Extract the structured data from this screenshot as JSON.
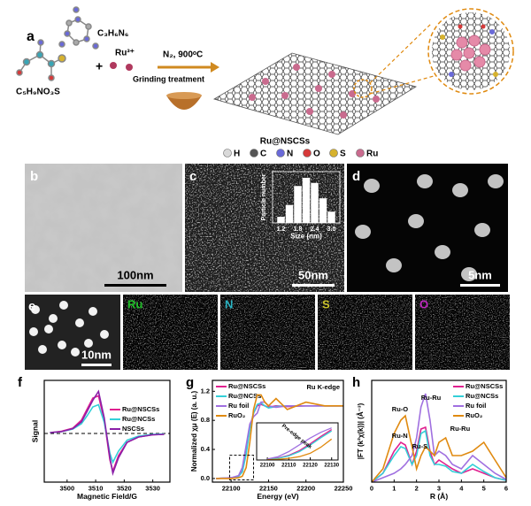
{
  "panel_a": {
    "label": "a",
    "melamine": "C₃H₆N₆",
    "cysteine": "C₅H₉NO₃S",
    "plus": "+",
    "ruthenium_ion": "Ru³⁺",
    "condition": "N₂, 900ᵒC",
    "process": "Grinding treatment",
    "product": "Ru@NSCSs",
    "atoms": [
      {
        "symbol": "H",
        "color": "#d9d9d9"
      },
      {
        "symbol": "C",
        "color": "#555555"
      },
      {
        "symbol": "N",
        "color": "#6a6ad8"
      },
      {
        "symbol": "O",
        "color": "#d63a3a"
      },
      {
        "symbol": "S",
        "color": "#d6b22e"
      },
      {
        "symbol": "Ru",
        "color": "#c96b8e"
      }
    ]
  },
  "panel_b": {
    "label": "b",
    "scale_bar": "100nm"
  },
  "panel_c": {
    "label": "c",
    "scale_bar": "50nm",
    "inset": {
      "type": "histogram",
      "xlabel": "Size (nm)",
      "ylabel": "Particle number",
      "bins": [
        1.05,
        1.35,
        1.65,
        1.95,
        2.25,
        2.55,
        2.85,
        3.15
      ],
      "counts": [
        12,
        35,
        72,
        88,
        78,
        48,
        22
      ],
      "xlim": [
        0.9,
        3.3
      ],
      "ylim": [
        0,
        100
      ],
      "xticks": [
        1.2,
        1.8,
        2.4,
        {
          "value": 3,
          "label": "3.0"
        }
      ],
      "color": "#ffffff"
    }
  },
  "panel_d": {
    "label": "d",
    "scale_bar": "5nm"
  },
  "panel_e": {
    "label": "e",
    "scale_bar": "10nm",
    "maps": [
      {
        "element": "Ru",
        "color": "#22c02a"
      },
      {
        "element": "N",
        "color": "#2bb5c4"
      },
      {
        "element": "S",
        "color": "#c9c22a"
      },
      {
        "element": "O",
        "color": "#c02ac0"
      }
    ]
  },
  "panel_f": {
    "type": "line",
    "label": "f",
    "xlabel": "Magnetic Field/G",
    "ylabel": "Signal",
    "x": [
      3494,
      3498,
      3502,
      3505,
      3507,
      3509,
      3511,
      3513,
      3515,
      3516,
      3518,
      3521,
      3525,
      3530,
      3534
    ],
    "xlim": [
      3492,
      3536
    ],
    "ylim": [
      -1.1,
      1.2
    ],
    "xticks": [
      3500,
      3510,
      3520,
      3530
    ],
    "baseline": 0,
    "series": [
      {
        "name": "Ru@NSCSs",
        "color": "#e0208f",
        "values": [
          0.02,
          0.05,
          0.12,
          0.3,
          0.55,
          0.8,
          0.85,
          0.3,
          -0.6,
          -0.85,
          -0.5,
          -0.2,
          -0.08,
          -0.03,
          -0.02
        ]
      },
      {
        "name": "Ru@NCSs",
        "color": "#33d0d8",
        "values": [
          0.02,
          0.04,
          0.1,
          0.22,
          0.4,
          0.6,
          0.65,
          0.25,
          -0.45,
          -0.65,
          -0.4,
          -0.15,
          -0.06,
          -0.02,
          -0.01
        ]
      },
      {
        "name": "NSCSs",
        "color": "#8a1fa8",
        "values": [
          0.02,
          0.04,
          0.11,
          0.26,
          0.5,
          0.75,
          0.95,
          0.35,
          -0.55,
          -0.9,
          -0.55,
          -0.2,
          -0.08,
          -0.03,
          -0.02
        ]
      }
    ]
  },
  "panel_g": {
    "type": "line",
    "label": "g",
    "xlabel": "Energy (eV)",
    "ylabel": "Normalized χμ (E) (a. u.)",
    "edge": "Ru K-edge",
    "x": [
      22080,
      22100,
      22110,
      22115,
      22120,
      22125,
      22130,
      22135,
      22140,
      22145,
      22150,
      22160,
      22175,
      22200,
      22225,
      22250
    ],
    "xlim": [
      22075,
      22250
    ],
    "ylim": [
      -0.05,
      1.35
    ],
    "xticks": [
      22100,
      22150,
      22200,
      22250
    ],
    "yticks": [
      {
        "value": 0,
        "label": "0.0"
      },
      0.4,
      0.8,
      1.2
    ],
    "series": [
      {
        "name": "Ru@NSCSs",
        "color": "#e0208f",
        "values": [
          0,
          0.01,
          0.03,
          0.1,
          0.35,
          0.7,
          0.9,
          1.0,
          1.02,
          1.0,
          0.98,
          1.0,
          0.99,
          1.0,
          1.0,
          1.0
        ]
      },
      {
        "name": "Ru@NCSs",
        "color": "#33d0d8",
        "values": [
          0,
          0.01,
          0.03,
          0.09,
          0.33,
          0.68,
          0.9,
          1.02,
          1.04,
          1.0,
          0.97,
          0.99,
          1.0,
          1.0,
          1.0,
          1.0
        ]
      },
      {
        "name": "Ru foil",
        "color": "#a070e0",
        "values": [
          0,
          0.01,
          0.04,
          0.15,
          0.45,
          0.75,
          0.85,
          0.9,
          1.05,
          1.05,
          1.0,
          0.98,
          1.0,
          1.0,
          1.0,
          1.0
        ]
      },
      {
        "name": "RuO₂",
        "color": "#e08a10",
        "values": [
          0,
          0,
          0.01,
          0.03,
          0.15,
          0.5,
          0.95,
          1.15,
          1.15,
          1.05,
          1.0,
          1.1,
          0.95,
          1.05,
          1.0,
          1.0
        ]
      }
    ],
    "inset": {
      "type": "line",
      "title": "Pre-edge peak",
      "x": [
        22100,
        22105,
        22110,
        22115,
        22120,
        22125,
        22130
      ],
      "xlim": [
        22095,
        22133
      ],
      "ylim": [
        0,
        1.1
      ],
      "xticks": [
        22100,
        22110,
        22120,
        22130
      ],
      "series": [
        {
          "color": "#e0208f",
          "values": [
            0.02,
            0.06,
            0.14,
            0.28,
            0.48,
            0.7,
            0.9
          ]
        },
        {
          "color": "#33d0d8",
          "values": [
            0.02,
            0.05,
            0.12,
            0.25,
            0.44,
            0.66,
            0.86
          ]
        },
        {
          "color": "#a070e0",
          "values": [
            0.03,
            0.1,
            0.25,
            0.45,
            0.65,
            0.82,
            0.95
          ]
        },
        {
          "color": "#e08a10",
          "values": [
            0.01,
            0.02,
            0.05,
            0.1,
            0.2,
            0.38,
            0.62
          ]
        }
      ]
    }
  },
  "panel_h": {
    "type": "line",
    "label": "h",
    "xlabel": "R (Å)",
    "ylabel": "|FT (k²χ(k))| (Å⁻³)",
    "x": [
      0,
      0.5,
      1,
      1.3,
      1.5,
      1.8,
      2.0,
      2.2,
      2.4,
      2.6,
      2.8,
      3.0,
      3.3,
      3.6,
      4.0,
      4.5,
      5.0,
      5.5,
      6.0
    ],
    "xlim": [
      0,
      6
    ],
    "ylim": [
      0,
      1.15
    ],
    "xticks": [
      0,
      1,
      2,
      3,
      4,
      5,
      6
    ],
    "annotations": [
      "Ru-O",
      "Ru-N",
      "Ru-S",
      "Ru-Ru",
      "Ru-Ru"
    ],
    "series": [
      {
        "name": "Ru@NSCSs",
        "color": "#e0208f",
        "values": [
          0,
          0.1,
          0.35,
          0.45,
          0.42,
          0.2,
          0.35,
          0.6,
          0.62,
          0.35,
          0.2,
          0.25,
          0.2,
          0.15,
          0.1,
          0.15,
          0.1,
          0.05,
          0.02
        ]
      },
      {
        "name": "Ru@NCSs",
        "color": "#33d0d8",
        "values": [
          0,
          0.1,
          0.3,
          0.4,
          0.38,
          0.2,
          0.3,
          0.55,
          0.58,
          0.3,
          0.2,
          0.2,
          0.18,
          0.12,
          0.1,
          0.2,
          0.12,
          0.05,
          0.02
        ]
      },
      {
        "name": "Ru foil",
        "color": "#a070e0",
        "values": [
          0,
          0.05,
          0.1,
          0.15,
          0.2,
          0.3,
          0.5,
          0.85,
          1.0,
          0.7,
          0.3,
          0.35,
          0.3,
          0.2,
          0.15,
          0.3,
          0.2,
          0.1,
          0.03
        ]
      },
      {
        "name": "RuO₂",
        "color": "#e08a10",
        "values": [
          0,
          0.15,
          0.55,
          0.7,
          0.75,
          0.4,
          0.15,
          0.3,
          0.4,
          0.35,
          0.3,
          0.45,
          0.5,
          0.3,
          0.3,
          0.35,
          0.45,
          0.25,
          0.05
        ]
      }
    ]
  }
}
